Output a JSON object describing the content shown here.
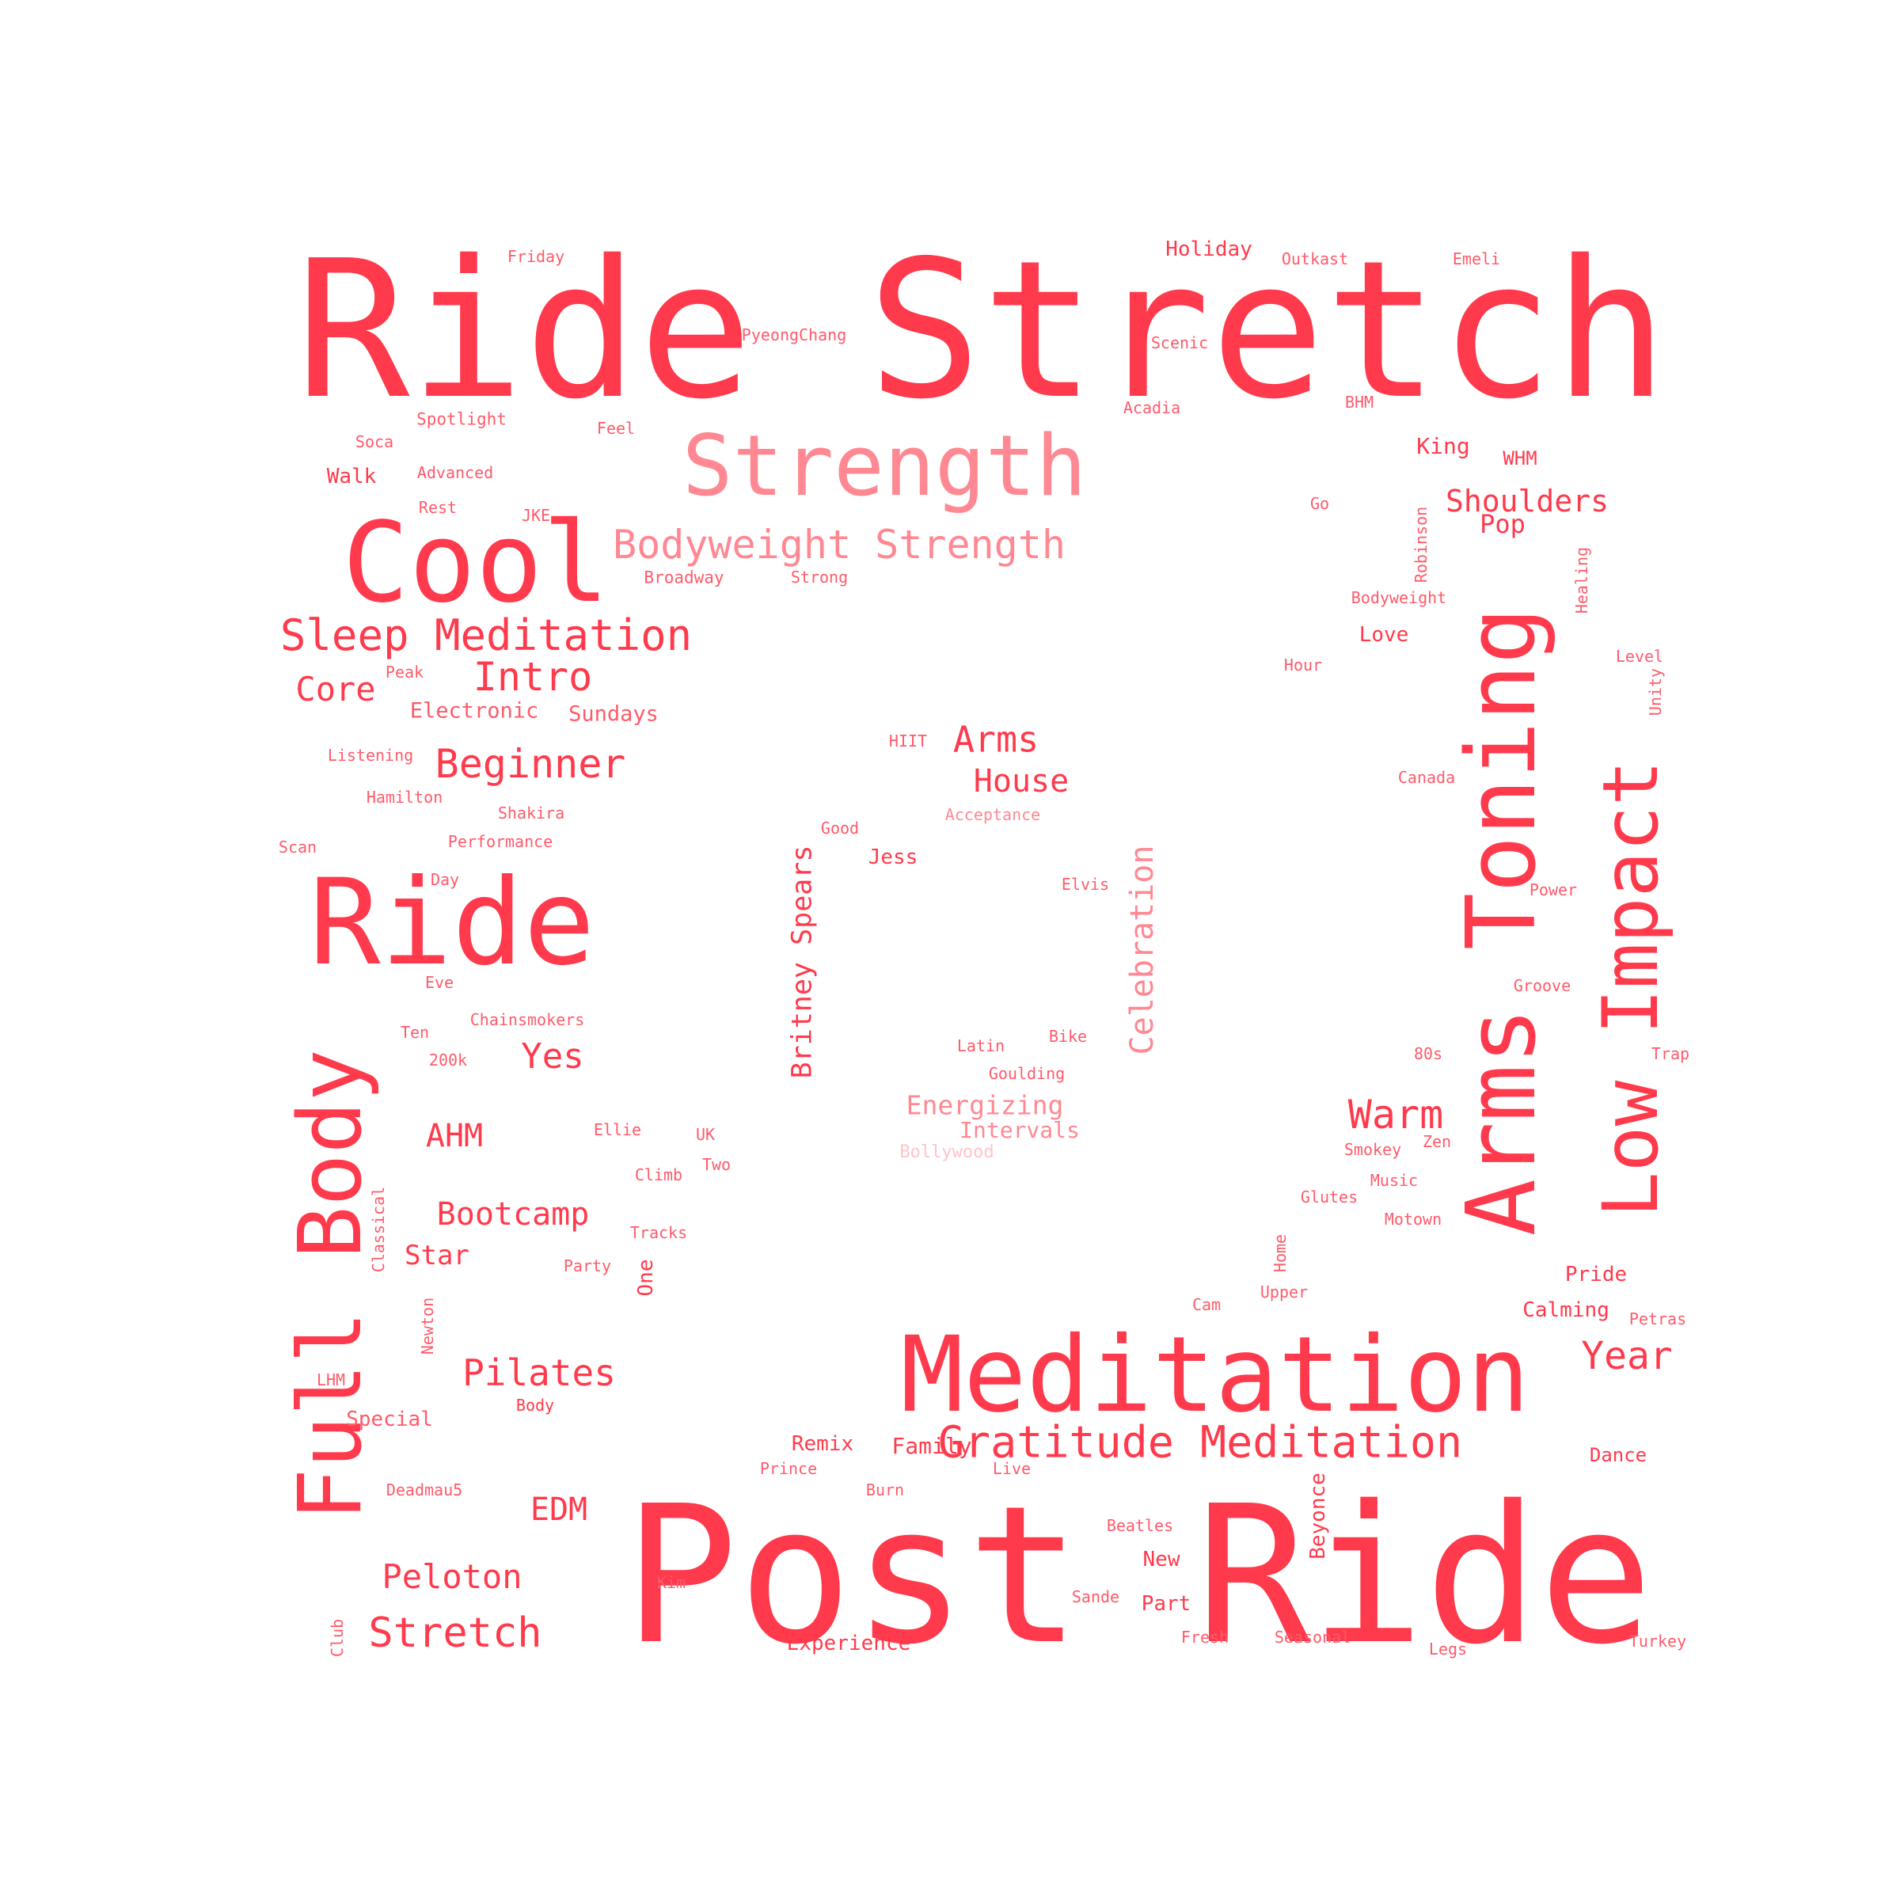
{
  "palette": {
    "primary": "#ff3a4c",
    "secondary": "#ff5a6a",
    "light": "#ff8892",
    "faint": "#ffc4c9",
    "background": "#ffffff"
  },
  "words": [
    {
      "text": "Ride Stretch",
      "tone": 0
    },
    {
      "text": "Post Ride",
      "tone": 0
    },
    {
      "text": "Meditation",
      "tone": 0
    },
    {
      "text": "Strength",
      "tone": 2
    },
    {
      "text": "Cool",
      "tone": 0
    },
    {
      "text": "Ride",
      "tone": 0
    },
    {
      "text": "Full Body",
      "tone": 0
    },
    {
      "text": "Arms Toning",
      "tone": 0
    },
    {
      "text": "Low Impact",
      "tone": 0
    },
    {
      "text": "Gratitude Meditation",
      "tone": 0
    },
    {
      "text": "Bodyweight Strength",
      "tone": 2
    },
    {
      "text": "Sleep Meditation",
      "tone": 0
    },
    {
      "text": "Intro",
      "tone": 0
    },
    {
      "text": "Core",
      "tone": 0
    },
    {
      "text": "Beginner",
      "tone": 0
    },
    {
      "text": "Electronic",
      "tone": 1
    },
    {
      "text": "Sundays",
      "tone": 1
    },
    {
      "text": "Arms",
      "tone": 0
    },
    {
      "text": "House",
      "tone": 0
    },
    {
      "text": "Celebration",
      "tone": 2
    },
    {
      "text": "Britney Spears",
      "tone": 0
    },
    {
      "text": "Shoulders",
      "tone": 0
    },
    {
      "text": "Pop",
      "tone": 0
    },
    {
      "text": "Warm",
      "tone": 0
    },
    {
      "text": "Year",
      "tone": 0
    },
    {
      "text": "Yes",
      "tone": 0
    },
    {
      "text": "AHM",
      "tone": 0
    },
    {
      "text": "Bootcamp",
      "tone": 0
    },
    {
      "text": "Star",
      "tone": 0
    },
    {
      "text": "Pilates",
      "tone": 0
    },
    {
      "text": "EDM",
      "tone": 0
    },
    {
      "text": "Peloton",
      "tone": 0
    },
    {
      "text": "Stretch",
      "tone": 0
    },
    {
      "text": "Energizing",
      "tone": 2
    },
    {
      "text": "Intervals",
      "tone": 2
    },
    {
      "text": "Bollywood",
      "tone": 3
    },
    {
      "text": "Holiday",
      "tone": 0
    },
    {
      "text": "Friday",
      "tone": 1
    },
    {
      "text": "Outkast",
      "tone": 1
    },
    {
      "text": "Emeli",
      "tone": 1
    },
    {
      "text": "PyeongChang",
      "tone": 1
    },
    {
      "text": "Scenic",
      "tone": 1
    },
    {
      "text": "Acadia",
      "tone": 1
    },
    {
      "text": "BHM",
      "tone": 1
    },
    {
      "text": "Spotlight",
      "tone": 1
    },
    {
      "text": "Soca",
      "tone": 1
    },
    {
      "text": "Feel",
      "tone": 1
    },
    {
      "text": "Walk",
      "tone": 0
    },
    {
      "text": "Advanced",
      "tone": 1
    },
    {
      "text": "Rest",
      "tone": 1
    },
    {
      "text": "JKE",
      "tone": 1
    },
    {
      "text": "Broadway",
      "tone": 1
    },
    {
      "text": "Strong",
      "tone": 1
    },
    {
      "text": "King",
      "tone": 0
    },
    {
      "text": "WHM",
      "tone": 0
    },
    {
      "text": "Go",
      "tone": 1
    },
    {
      "text": "Robinson",
      "tone": 1
    },
    {
      "text": "Healing",
      "tone": 1
    },
    {
      "text": "Bodyweight",
      "tone": 1
    },
    {
      "text": "Love",
      "tone": 0
    },
    {
      "text": "Hour",
      "tone": 1
    },
    {
      "text": "Level",
      "tone": 1
    },
    {
      "text": "Unity",
      "tone": 1
    },
    {
      "text": "Peak",
      "tone": 1
    },
    {
      "text": "Listening",
      "tone": 1
    },
    {
      "text": "Hamilton",
      "tone": 1
    },
    {
      "text": "Shakira",
      "tone": 1
    },
    {
      "text": "Scan",
      "tone": 1
    },
    {
      "text": "Performance",
      "tone": 1
    },
    {
      "text": "Day",
      "tone": 1
    },
    {
      "text": "HIIT",
      "tone": 1
    },
    {
      "text": "Good",
      "tone": 1
    },
    {
      "text": "Acceptance",
      "tone": 2
    },
    {
      "text": "Jess",
      "tone": 0
    },
    {
      "text": "Elvis",
      "tone": 1
    },
    {
      "text": "Canada",
      "tone": 1
    },
    {
      "text": "Power",
      "tone": 1
    },
    {
      "text": "Groove",
      "tone": 1
    },
    {
      "text": "Eve",
      "tone": 1
    },
    {
      "text": "Chainsmokers",
      "tone": 1
    },
    {
      "text": "Ten",
      "tone": 1
    },
    {
      "text": "200k",
      "tone": 1
    },
    {
      "text": "Latin",
      "tone": 1
    },
    {
      "text": "Bike",
      "tone": 1
    },
    {
      "text": "Goulding",
      "tone": 1
    },
    {
      "text": "80s",
      "tone": 1
    },
    {
      "text": "Trap",
      "tone": 1
    },
    {
      "text": "Ellie",
      "tone": 1
    },
    {
      "text": "UK",
      "tone": 1
    },
    {
      "text": "Two",
      "tone": 1
    },
    {
      "text": "Climb",
      "tone": 1
    },
    {
      "text": "Smokey",
      "tone": 1
    },
    {
      "text": "Zen",
      "tone": 1
    },
    {
      "text": "Music",
      "tone": 1
    },
    {
      "text": "Glutes",
      "tone": 1
    },
    {
      "text": "Motown",
      "tone": 1
    },
    {
      "text": "Classical",
      "tone": 1
    },
    {
      "text": "Tracks",
      "tone": 1
    },
    {
      "text": "Party",
      "tone": 1
    },
    {
      "text": "One",
      "tone": 0
    },
    {
      "text": "Home",
      "tone": 1
    },
    {
      "text": "Upper",
      "tone": 1
    },
    {
      "text": "Cam",
      "tone": 1
    },
    {
      "text": "Pride",
      "tone": 0
    },
    {
      "text": "Calming",
      "tone": 0
    },
    {
      "text": "Petras",
      "tone": 1
    },
    {
      "text": "Newton",
      "tone": 1
    },
    {
      "text": "LHM",
      "tone": 1
    },
    {
      "text": "Special",
      "tone": 1
    },
    {
      "text": "Body",
      "tone": 0
    },
    {
      "text": "Remix",
      "tone": 0
    },
    {
      "text": "Family",
      "tone": 0
    },
    {
      "text": "Prince",
      "tone": 1
    },
    {
      "text": "Live",
      "tone": 1
    },
    {
      "text": "Dance",
      "tone": 0
    },
    {
      "text": "Deadmau5",
      "tone": 1
    },
    {
      "text": "Burn",
      "tone": 1
    },
    {
      "text": "Beyonce",
      "tone": 0
    },
    {
      "text": "Beatles",
      "tone": 1
    },
    {
      "text": "New",
      "tone": 0
    },
    {
      "text": "Kim",
      "tone": 1
    },
    {
      "text": "Sande",
      "tone": 1
    },
    {
      "text": "Part",
      "tone": 0
    },
    {
      "text": "Club",
      "tone": 1
    },
    {
      "text": "Experience",
      "tone": 0
    },
    {
      "text": "Fresh",
      "tone": 1
    },
    {
      "text": "Seasonal",
      "tone": 1
    },
    {
      "text": "Legs",
      "tone": 1
    },
    {
      "text": "Turkey",
      "tone": 1
    }
  ]
}
